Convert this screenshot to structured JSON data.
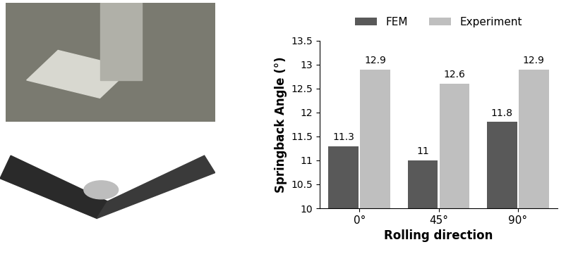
{
  "chart_data": {
    "type": "bar",
    "categories": [
      "0°",
      "45°",
      "90°"
    ],
    "series": [
      {
        "name": "FEM",
        "color": "#595959",
        "values": [
          11.3,
          11,
          11.8
        ]
      },
      {
        "name": "Experiment",
        "color": "#bfbfbf",
        "values": [
          12.9,
          12.6,
          12.9
        ]
      }
    ],
    "x_label": "Rolling direction",
    "y_label": "Springback Angle (°)",
    "ylim": [
      10,
      13.5
    ],
    "yticks": [
      10,
      10.5,
      11,
      11.5,
      12,
      12.5,
      13,
      13.5
    ],
    "grid": false,
    "legend": "upper center",
    "data_labels": true
  }
}
